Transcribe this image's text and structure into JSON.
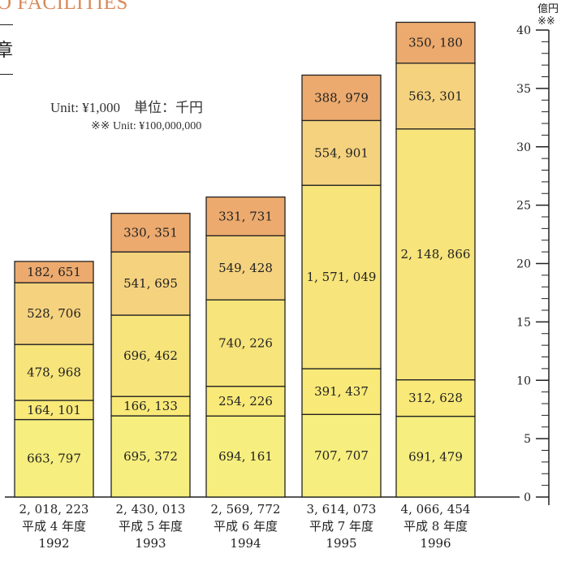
{
  "header": {
    "title": "O FACILITIES",
    "side_tab": "章"
  },
  "unit_note": {
    "line1": "Unit: ¥1,000　単位：千円",
    "line2": "※※ Unit: ¥100,000,000"
  },
  "colors": {
    "seg1": "#f6ee7e",
    "seg2": "#f8e978",
    "seg3": "#f7e47a",
    "seg4": "#f5d27e",
    "seg5": "#ecaa6e",
    "stroke": "#222222"
  },
  "chart_data": {
    "type": "bar",
    "stacked": true,
    "ylabel": "億円※※",
    "ylim": [
      0,
      40
    ],
    "yticks": [
      "0",
      "5",
      "10",
      "15",
      "20",
      "25",
      "30",
      "35",
      "40"
    ],
    "grid": false,
    "bars": [
      {
        "segments": [
          663797,
          164101,
          478968,
          528706,
          182651
        ],
        "labels": [
          "663, 797",
          "164, 101",
          "478, 968",
          "528, 706",
          "182, 651"
        ],
        "total": "2, 018, 223",
        "era": "平成 4 年度",
        "year": "1992"
      },
      {
        "segments": [
          695372,
          166133,
          696462,
          541695,
          330351
        ],
        "labels": [
          "695, 372",
          "166, 133",
          "696, 462",
          "541, 695",
          "330, 351"
        ],
        "total": "2, 430, 013",
        "era": "平成 5 年度",
        "year": "1993"
      },
      {
        "segments": [
          694161,
          254226,
          740226,
          549428,
          331731
        ],
        "labels": [
          "694, 161",
          "254, 226",
          "740, 226",
          "549, 428",
          "331, 731"
        ],
        "total": "2, 569, 772",
        "era": "平成 6 年度",
        "year": "1994"
      },
      {
        "segments": [
          707707,
          391437,
          1571049,
          554901,
          388979
        ],
        "labels": [
          "707, 707",
          "391, 437",
          "1, 571, 049",
          "554, 901",
          "388, 979"
        ],
        "total": "3, 614, 073",
        "era": "平成 7 年度",
        "year": "1995"
      },
      {
        "segments": [
          691479,
          312628,
          2148866,
          563301,
          350180
        ],
        "labels": [
          "691, 479",
          "312, 628",
          "2, 148, 866",
          "563, 301",
          "350, 180"
        ],
        "total": "4, 066, 454",
        "era": "平成 8 年度",
        "year": "1996"
      }
    ]
  }
}
